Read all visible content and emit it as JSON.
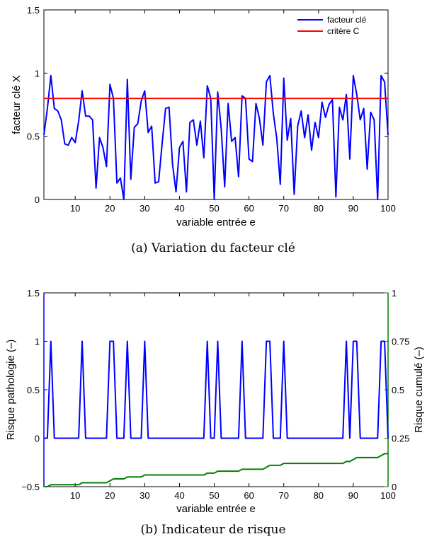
{
  "chart_data": [
    {
      "type": "line",
      "caption": "(a) Variation du facteur clé",
      "xlabel": "variable entrée e",
      "ylabel": "facteur clé X",
      "xlim": [
        1,
        100
      ],
      "ylim": [
        0,
        1.5
      ],
      "xticks": [
        10,
        20,
        30,
        40,
        50,
        60,
        70,
        80,
        90,
        100
      ],
      "yticks": [
        0,
        0.5,
        1,
        1.5
      ],
      "ytick_labels": [
        "0",
        "0.5",
        "1",
        "1.5"
      ],
      "legend": {
        "position": "top-right",
        "entries": [
          "facteur clé",
          "critère C"
        ]
      },
      "series": [
        {
          "name": "facteur clé",
          "color": "#0000ff",
          "x": [
            1,
            2,
            3,
            4,
            5,
            6,
            7,
            8,
            9,
            10,
            11,
            12,
            13,
            14,
            15,
            16,
            17,
            18,
            19,
            20,
            21,
            22,
            23,
            24,
            25,
            26,
            27,
            28,
            29,
            30,
            31,
            32,
            33,
            34,
            35,
            36,
            37,
            38,
            39,
            40,
            41,
            42,
            43,
            44,
            45,
            46,
            47,
            48,
            49,
            50,
            51,
            52,
            53,
            54,
            55,
            56,
            57,
            58,
            59,
            60,
            61,
            62,
            63,
            64,
            65,
            66,
            67,
            68,
            69,
            70,
            71,
            72,
            73,
            74,
            75,
            76,
            77,
            78,
            79,
            80,
            81,
            82,
            83,
            84,
            85,
            86,
            87,
            88,
            89,
            90,
            91,
            92,
            93,
            94,
            95,
            96,
            97,
            98,
            99,
            100
          ],
          "y": [
            0.51,
            0.72,
            0.98,
            0.72,
            0.7,
            0.63,
            0.44,
            0.43,
            0.49,
            0.45,
            0.62,
            0.86,
            0.66,
            0.66,
            0.63,
            0.09,
            0.49,
            0.41,
            0.26,
            0.91,
            0.8,
            0.13,
            0.17,
            0.0,
            0.95,
            0.16,
            0.57,
            0.6,
            0.78,
            0.86,
            0.53,
            0.58,
            0.13,
            0.14,
            0.44,
            0.72,
            0.73,
            0.28,
            0.06,
            0.41,
            0.46,
            0.06,
            0.61,
            0.63,
            0.43,
            0.62,
            0.33,
            0.9,
            0.8,
            0.0,
            0.85,
            0.56,
            0.1,
            0.76,
            0.46,
            0.49,
            0.18,
            0.82,
            0.8,
            0.32,
            0.3,
            0.76,
            0.64,
            0.43,
            0.93,
            0.98,
            0.68,
            0.48,
            0.12,
            0.96,
            0.47,
            0.64,
            0.04,
            0.58,
            0.7,
            0.49,
            0.67,
            0.39,
            0.61,
            0.49,
            0.77,
            0.65,
            0.75,
            0.79,
            0.02,
            0.73,
            0.63,
            0.83,
            0.32,
            0.98,
            0.83,
            0.63,
            0.72,
            0.24,
            0.69,
            0.63,
            0.0,
            0.98,
            0.93,
            0.51
          ]
        },
        {
          "name": "critère C",
          "color": "#ff0000",
          "x": [
            1,
            100
          ],
          "y": [
            0.8,
            0.8
          ]
        }
      ]
    },
    {
      "type": "line",
      "caption": "(b) Indicateur de risque",
      "xlabel": "variable entrée e",
      "ylabel": "Risque pathologie (–)",
      "y2label": "Risque cumulé (–)",
      "xlim": [
        1,
        100
      ],
      "ylim": [
        -0.5,
        1.5
      ],
      "y2lim": [
        0,
        1
      ],
      "xticks": [
        10,
        20,
        30,
        40,
        50,
        60,
        70,
        80,
        90,
        100
      ],
      "yticks": [
        -0.5,
        0,
        0.5,
        1,
        1.5
      ],
      "ytick_labels": [
        "−0.5",
        "0",
        "0.5",
        "1",
        "1.5"
      ],
      "y2ticks": [
        0,
        0.25,
        0.5,
        0.75,
        1
      ],
      "y2tick_labels": [
        "0",
        "0.25",
        "0.5",
        "0.75",
        "1"
      ],
      "left_axis_color": "#0000ff",
      "right_axis_color": "#008000",
      "series": [
        {
          "axis": "left",
          "color": "#0000ff",
          "x": [
            1,
            2,
            3,
            4,
            5,
            6,
            7,
            8,
            9,
            10,
            11,
            12,
            13,
            14,
            15,
            16,
            17,
            18,
            19,
            20,
            21,
            22,
            23,
            24,
            25,
            26,
            27,
            28,
            29,
            30,
            31,
            32,
            33,
            34,
            35,
            36,
            37,
            38,
            39,
            40,
            41,
            42,
            43,
            44,
            45,
            46,
            47,
            48,
            49,
            50,
            51,
            52,
            53,
            54,
            55,
            56,
            57,
            58,
            59,
            60,
            61,
            62,
            63,
            64,
            65,
            66,
            67,
            68,
            69,
            70,
            71,
            72,
            73,
            74,
            75,
            76,
            77,
            78,
            79,
            80,
            81,
            82,
            83,
            84,
            85,
            86,
            87,
            88,
            89,
            90,
            91,
            92,
            93,
            94,
            95,
            96,
            97,
            98,
            99,
            100
          ],
          "y": [
            0,
            0,
            1,
            0,
            0,
            0,
            0,
            0,
            0,
            0,
            0,
            1,
            0,
            0,
            0,
            0,
            0,
            0,
            0,
            1,
            1,
            0,
            0,
            0,
            1,
            0,
            0,
            0,
            0,
            1,
            0,
            0,
            0,
            0,
            0,
            0,
            0,
            0,
            0,
            0,
            0,
            0,
            0,
            0,
            0,
            0,
            0,
            1,
            0,
            0,
            1,
            0,
            0,
            0,
            0,
            0,
            0,
            1,
            0,
            0,
            0,
            0,
            0,
            0,
            1,
            1,
            0,
            0,
            0,
            1,
            0,
            0,
            0,
            0,
            0,
            0,
            0,
            0,
            0,
            0,
            0,
            0,
            0,
            0,
            0,
            0,
            0,
            1,
            0,
            1,
            1,
            0,
            0,
            0,
            0,
            0,
            0,
            1,
            1,
            0
          ]
        },
        {
          "axis": "right",
          "color": "#008000",
          "x": [
            1,
            2,
            3,
            4,
            5,
            6,
            7,
            8,
            9,
            10,
            11,
            12,
            13,
            14,
            15,
            16,
            17,
            18,
            19,
            20,
            21,
            22,
            23,
            24,
            25,
            26,
            27,
            28,
            29,
            30,
            31,
            32,
            33,
            34,
            35,
            36,
            37,
            38,
            39,
            40,
            41,
            42,
            43,
            44,
            45,
            46,
            47,
            48,
            49,
            50,
            51,
            52,
            53,
            54,
            55,
            56,
            57,
            58,
            59,
            60,
            61,
            62,
            63,
            64,
            65,
            66,
            67,
            68,
            69,
            70,
            71,
            72,
            73,
            74,
            75,
            76,
            77,
            78,
            79,
            80,
            81,
            82,
            83,
            84,
            85,
            86,
            87,
            88,
            89,
            90,
            91,
            92,
            93,
            94,
            95,
            96,
            97,
            98,
            99,
            100
          ],
          "y": [
            0,
            0,
            0.01,
            0.01,
            0.01,
            0.01,
            0.01,
            0.01,
            0.01,
            0.01,
            0.01,
            0.02,
            0.02,
            0.02,
            0.02,
            0.02,
            0.02,
            0.02,
            0.02,
            0.03,
            0.04,
            0.04,
            0.04,
            0.04,
            0.05,
            0.05,
            0.05,
            0.05,
            0.05,
            0.06,
            0.06,
            0.06,
            0.06,
            0.06,
            0.06,
            0.06,
            0.06,
            0.06,
            0.06,
            0.06,
            0.06,
            0.06,
            0.06,
            0.06,
            0.06,
            0.06,
            0.06,
            0.07,
            0.07,
            0.07,
            0.08,
            0.08,
            0.08,
            0.08,
            0.08,
            0.08,
            0.08,
            0.09,
            0.09,
            0.09,
            0.09,
            0.09,
            0.09,
            0.09,
            0.1,
            0.11,
            0.11,
            0.11,
            0.11,
            0.12,
            0.12,
            0.12,
            0.12,
            0.12,
            0.12,
            0.12,
            0.12,
            0.12,
            0.12,
            0.12,
            0.12,
            0.12,
            0.12,
            0.12,
            0.12,
            0.12,
            0.12,
            0.13,
            0.13,
            0.14,
            0.15,
            0.15,
            0.15,
            0.15,
            0.15,
            0.15,
            0.15,
            0.16,
            0.17,
            0.17
          ]
        }
      ]
    }
  ]
}
